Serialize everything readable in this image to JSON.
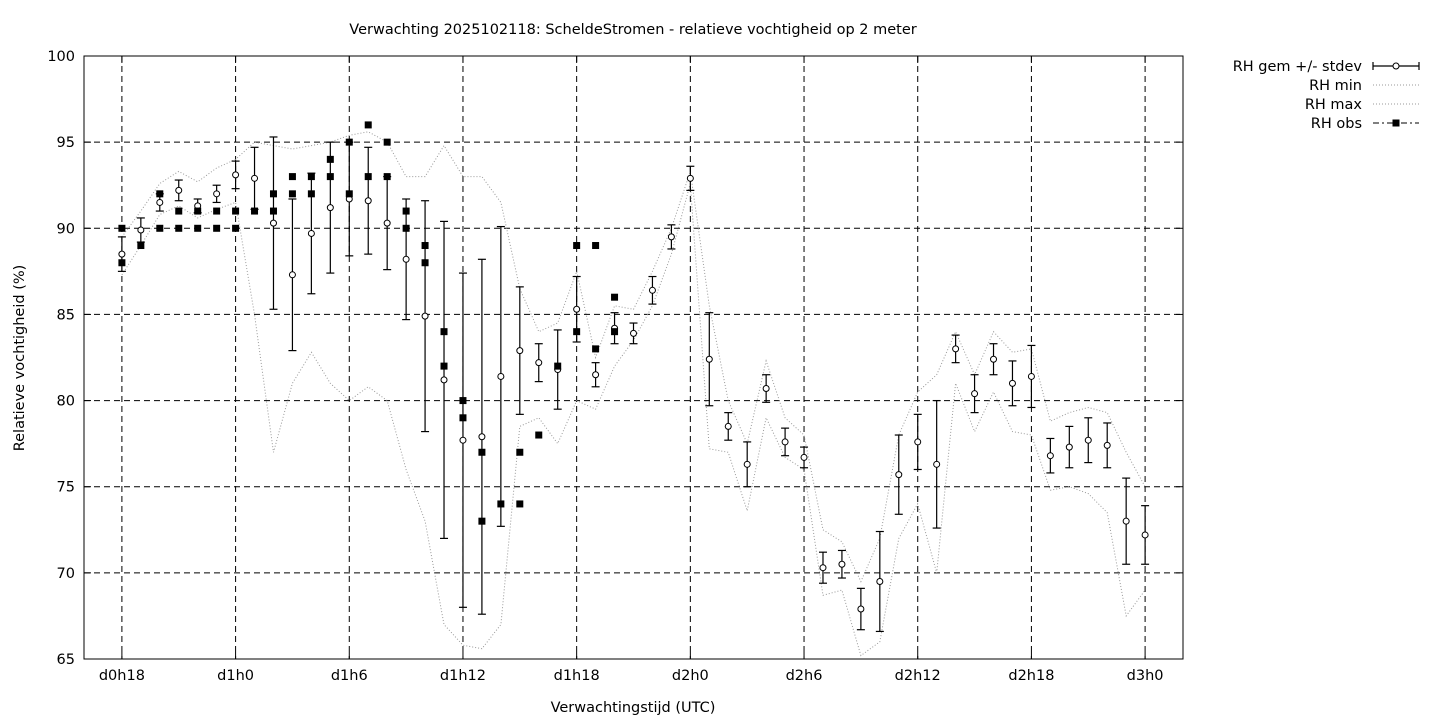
{
  "chart_data": {
    "type": "line",
    "title": "Verwachting 2025102118: ScheldeStromen - relatieve vochtigheid op 2 meter",
    "xlabel": "Verwachtingstijd (UTC)",
    "ylabel": "Relatieve vochtigheid (%)",
    "xlim": [
      16,
      74
    ],
    "ylim": [
      65,
      100
    ],
    "grid": true,
    "legend_position": "outside-top-right",
    "x_ticks": [
      {
        "value": 18,
        "label": "d0h18"
      },
      {
        "value": 24,
        "label": "d1h0"
      },
      {
        "value": 30,
        "label": "d1h6"
      },
      {
        "value": 36,
        "label": "d1h12"
      },
      {
        "value": 42,
        "label": "d1h18"
      },
      {
        "value": 48,
        "label": "d2h0"
      },
      {
        "value": 54,
        "label": "d2h6"
      },
      {
        "value": 60,
        "label": "d2h12"
      },
      {
        "value": 66,
        "label": "d2h18"
      },
      {
        "value": 72,
        "label": "d3h0"
      }
    ],
    "y_ticks": [
      65,
      70,
      75,
      80,
      85,
      90,
      95,
      100
    ],
    "legend": [
      {
        "label": "RH gem +/- stdev",
        "style": "errorbar-circle"
      },
      {
        "label": "RH min",
        "style": "dotted"
      },
      {
        "label": "RH max",
        "style": "dotted"
      },
      {
        "label": "RH obs",
        "style": "square-dashdot"
      }
    ],
    "series": [
      {
        "name": "RH gem +/- stdev",
        "x": [
          18,
          19,
          20,
          21,
          22,
          23,
          24,
          25,
          26,
          27,
          28,
          29,
          30,
          31,
          32,
          33,
          34,
          35,
          36,
          37,
          38,
          39,
          40,
          41,
          42,
          43,
          44,
          45,
          46,
          47,
          48,
          49,
          50,
          51,
          52,
          53,
          54,
          55,
          56,
          57,
          58,
          59,
          60,
          61,
          62,
          63,
          64,
          65,
          66,
          67,
          68,
          69,
          70,
          71,
          72
        ],
        "mean": [
          88.5,
          89.9,
          91.5,
          92.2,
          91.3,
          92.0,
          93.1,
          92.9,
          90.3,
          87.3,
          89.7,
          91.2,
          91.7,
          91.6,
          90.3,
          88.2,
          84.9,
          81.2,
          77.7,
          77.9,
          81.4,
          82.9,
          82.2,
          81.8,
          85.3,
          81.5,
          84.2,
          83.9,
          86.4,
          89.5,
          92.9,
          82.4,
          78.5,
          76.3,
          80.7,
          77.6,
          76.7,
          70.3,
          70.5,
          67.9,
          69.5,
          75.7,
          77.6,
          76.3,
          83.0,
          80.4,
          82.4,
          81.0,
          81.4,
          76.8,
          77.3,
          77.7,
          77.4,
          73.0,
          72.2
        ],
        "stdev": [
          1.0,
          0.7,
          0.5,
          0.6,
          0.4,
          0.5,
          0.8,
          1.8,
          5.0,
          4.4,
          3.5,
          3.8,
          3.3,
          3.1,
          2.7,
          3.5,
          6.7,
          9.2,
          9.7,
          10.3,
          8.7,
          3.7,
          1.1,
          2.3,
          1.9,
          0.7,
          0.9,
          0.6,
          0.8,
          0.7,
          0.7,
          2.7,
          0.8,
          1.3,
          0.8,
          0.8,
          0.6,
          0.9,
          0.8,
          1.2,
          2.9,
          2.3,
          1.6,
          3.7,
          0.8,
          1.1,
          0.9,
          1.3,
          1.8,
          1.0,
          1.2,
          1.3,
          1.3,
          2.5,
          1.7
        ]
      },
      {
        "name": "RH min",
        "x": [
          18,
          19,
          20,
          21,
          22,
          23,
          24,
          25,
          26,
          27,
          28,
          29,
          30,
          31,
          32,
          33,
          34,
          35,
          36,
          37,
          38,
          39,
          40,
          41,
          42,
          43,
          44,
          45,
          46,
          47,
          48,
          49,
          50,
          51,
          52,
          53,
          54,
          55,
          56,
          57,
          58,
          59,
          60,
          61,
          62,
          63,
          64,
          65,
          66,
          67,
          68,
          69,
          70,
          71,
          72
        ],
        "values": [
          87.3,
          89.0,
          90.8,
          91.3,
          90.6,
          91.1,
          91.5,
          85.0,
          77.0,
          81.0,
          82.8,
          81.0,
          80.0,
          80.8,
          80.0,
          76.0,
          73.0,
          67.0,
          65.8,
          65.6,
          67.0,
          78.5,
          79.0,
          77.5,
          80.0,
          79.5,
          82.0,
          83.5,
          85.5,
          88.5,
          92.6,
          77.2,
          77.0,
          73.6,
          79.0,
          76.7,
          76.0,
          68.7,
          69.0,
          65.2,
          66.0,
          72.0,
          74.0,
          70.0,
          81.0,
          78.2,
          80.5,
          78.2,
          78.0,
          74.8,
          75.0,
          74.6,
          73.5,
          67.5,
          69.0
        ]
      },
      {
        "name": "RH max",
        "x": [
          18,
          19,
          20,
          21,
          22,
          23,
          24,
          25,
          26,
          27,
          28,
          29,
          30,
          31,
          32,
          33,
          34,
          35,
          36,
          37,
          38,
          39,
          40,
          41,
          42,
          43,
          44,
          45,
          46,
          47,
          48,
          49,
          50,
          51,
          52,
          53,
          54,
          55,
          56,
          57,
          58,
          59,
          60,
          61,
          62,
          63,
          64,
          65,
          66,
          67,
          68,
          69,
          70,
          71,
          72
        ],
        "values": [
          89.5,
          91.0,
          92.6,
          93.3,
          92.7,
          93.5,
          94.0,
          95.0,
          94.8,
          94.6,
          94.8,
          95.0,
          95.4,
          95.6,
          95.0,
          93.0,
          93.0,
          94.8,
          93.0,
          93.0,
          91.5,
          86.5,
          84.0,
          84.5,
          87.5,
          82.5,
          85.5,
          85.3,
          87.5,
          90.0,
          93.3,
          85.5,
          80.0,
          77.5,
          82.3,
          79.0,
          78.0,
          72.5,
          71.8,
          69.5,
          72.0,
          78.0,
          80.5,
          81.5,
          84.0,
          81.5,
          84.0,
          82.8,
          83.0,
          78.8,
          79.3,
          79.6,
          79.3,
          77.0,
          75.0
        ]
      },
      {
        "name": "RH obs",
        "points": [
          [
            18,
            90
          ],
          [
            18,
            88
          ],
          [
            19,
            89
          ],
          [
            20,
            92
          ],
          [
            20,
            90
          ],
          [
            21,
            91
          ],
          [
            21,
            90
          ],
          [
            22,
            91
          ],
          [
            22,
            90
          ],
          [
            23,
            91
          ],
          [
            23,
            90
          ],
          [
            24,
            91
          ],
          [
            24,
            90
          ],
          [
            25,
            91
          ],
          [
            26,
            92
          ],
          [
            26,
            91
          ],
          [
            27,
            93
          ],
          [
            27,
            92
          ],
          [
            28,
            93
          ],
          [
            28,
            92
          ],
          [
            29,
            94
          ],
          [
            29,
            93
          ],
          [
            30,
            95
          ],
          [
            30,
            92
          ],
          [
            31,
            96
          ],
          [
            31,
            93
          ],
          [
            32,
            95
          ],
          [
            32,
            93
          ],
          [
            33,
            91
          ],
          [
            33,
            90
          ],
          [
            34,
            89
          ],
          [
            34,
            88
          ],
          [
            35,
            84
          ],
          [
            35,
            82
          ],
          [
            36,
            80
          ],
          [
            36,
            79
          ],
          [
            37,
            77
          ],
          [
            37,
            73
          ],
          [
            38,
            74
          ],
          [
            39,
            77
          ],
          [
            39,
            74
          ],
          [
            40,
            78
          ],
          [
            41,
            82
          ],
          [
            42,
            89
          ],
          [
            42,
            84
          ],
          [
            43,
            89
          ],
          [
            43,
            83
          ],
          [
            44,
            86
          ],
          [
            44,
            84
          ]
        ]
      }
    ]
  }
}
